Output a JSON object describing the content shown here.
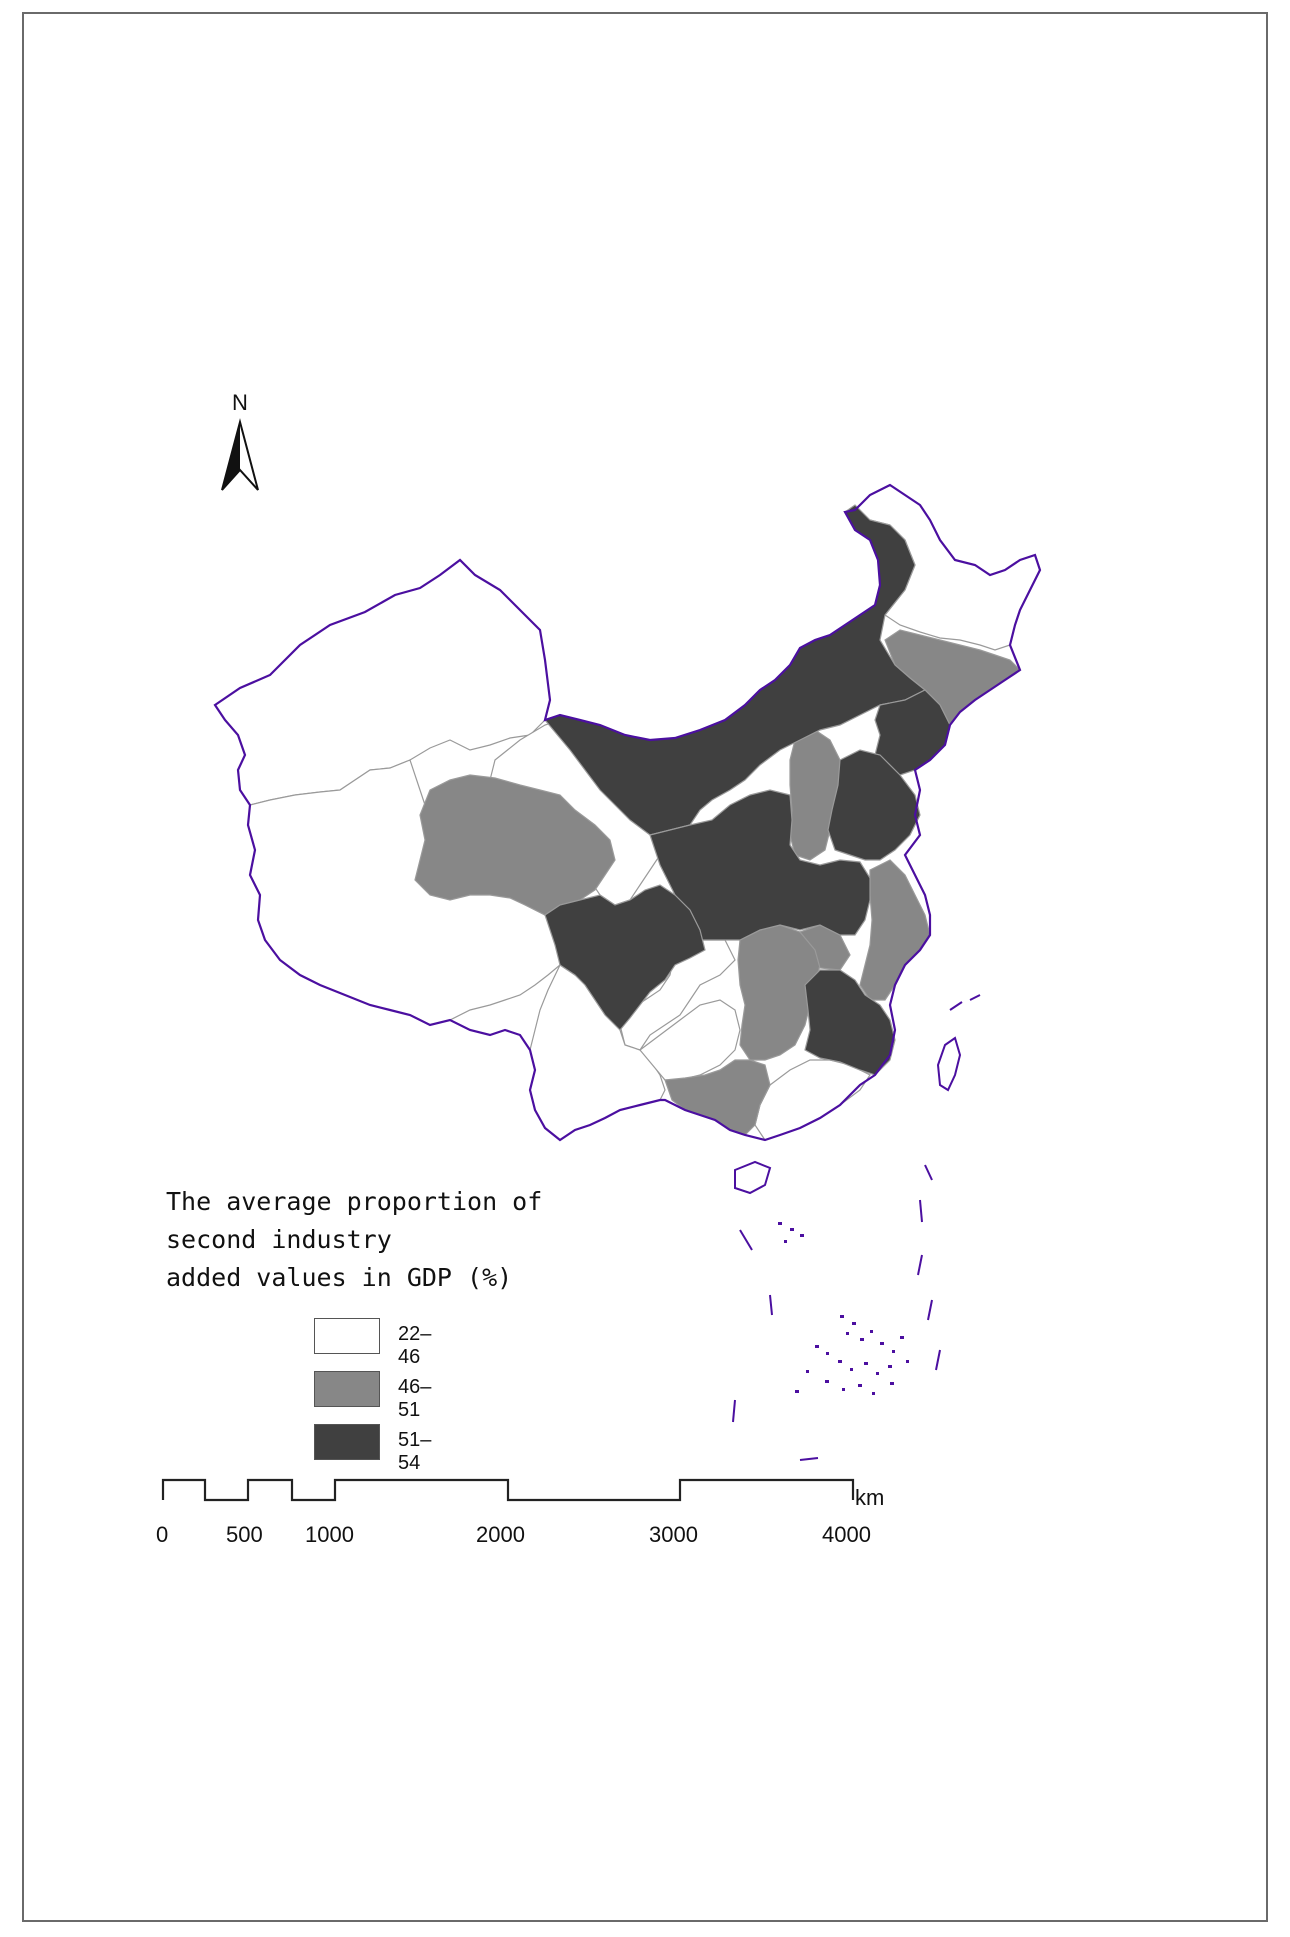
{
  "map": {
    "north_label": "N",
    "legend": {
      "title_lines": [
        "The average proportion of",
        "second industry",
        "added values in GDP (%)"
      ],
      "classes": [
        {
          "label": "22–46",
          "color": "#ffffff"
        },
        {
          "label": "46–51",
          "color": "#878787"
        },
        {
          "label": "51–54",
          "color": "#404040"
        }
      ]
    },
    "scale_bar": {
      "unit": "km",
      "ticks": [
        "0",
        "500",
        "1000",
        "2000",
        "3000",
        "4000"
      ]
    },
    "colors": {
      "border": "#4b0fa0",
      "internal": "#9a9a9a",
      "frame": "#6a6a6a"
    }
  }
}
